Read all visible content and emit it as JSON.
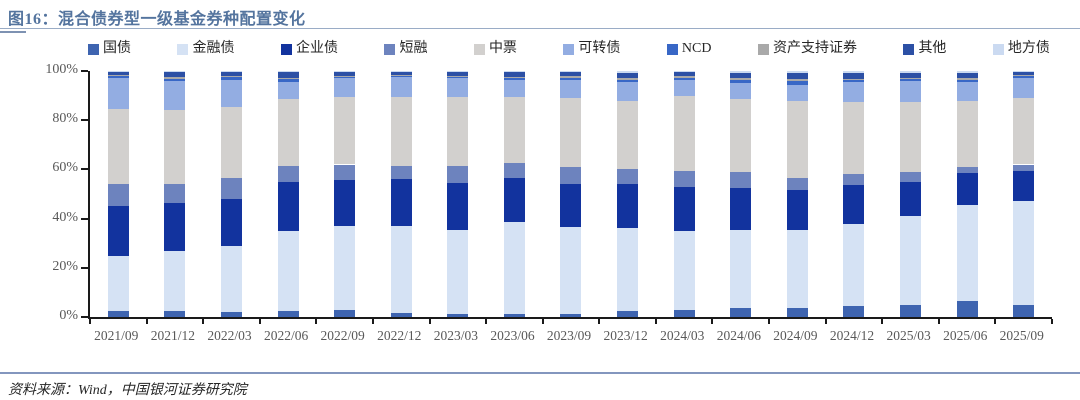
{
  "title": "图16：混合债券型一级基金券种配置变化",
  "source": "资料来源：Wind，中国银河证券研究院",
  "colors": {
    "title": "#54749E",
    "divider": "#9AACC6",
    "divider_accent": "#7E92B2",
    "footer_divider": "#8396BE",
    "axis": "#1A1A1A",
    "axis_label": "#595959",
    "legend_text": "#262626",
    "source_text": "#262626"
  },
  "chart_data": {
    "type": "bar",
    "stacked": true,
    "stacked_percent": true,
    "title": "混合债券型一级基金券种配置变化",
    "xlabel": "",
    "ylabel": "",
    "ylim": [
      0,
      100
    ],
    "yticks": [
      "0%",
      "20%",
      "40%",
      "60%",
      "80%",
      "100%"
    ],
    "grid": false,
    "legend_position": "top",
    "categories": [
      "2021/09",
      "2021/12",
      "2022/03",
      "2022/06",
      "2022/09",
      "2022/12",
      "2023/03",
      "2023/06",
      "2023/09",
      "2023/12",
      "2024/03",
      "2024/06",
      "2024/09",
      "2024/12",
      "2025/03",
      "2025/06",
      "2025/09"
    ],
    "series": [
      {
        "name": "国债",
        "color": "#3E64B0",
        "values": [
          2.5,
          2.5,
          2.0,
          2.5,
          3.0,
          1.8,
          1.2,
          1.3,
          1.2,
          2.5,
          2.8,
          3.5,
          3.8,
          4.5,
          4.8,
          6.5,
          5.0
        ]
      },
      {
        "name": "金融债",
        "color": "#D5E2F4",
        "values": [
          22.5,
          24.5,
          27.0,
          32.5,
          34.0,
          35.2,
          34.3,
          37.2,
          35.3,
          33.5,
          32.2,
          32.0,
          31.4,
          33.5,
          36.2,
          39.0,
          42.0
        ]
      },
      {
        "name": "企业债",
        "color": "#12339E",
        "values": [
          20.0,
          19.5,
          19.0,
          20.0,
          18.5,
          19.0,
          19.0,
          18.0,
          17.5,
          18.0,
          18.0,
          17.0,
          16.3,
          15.5,
          14.0,
          13.0,
          12.5
        ]
      },
      {
        "name": "短融",
        "color": "#6D83BE",
        "values": [
          9.0,
          7.5,
          8.5,
          6.5,
          6.5,
          5.5,
          7.0,
          6.0,
          7.0,
          6.0,
          6.5,
          6.5,
          5.0,
          4.5,
          4.0,
          2.5,
          2.5
        ]
      },
      {
        "name": "中票",
        "color": "#D2D0CE",
        "values": [
          30.5,
          30.0,
          29.0,
          27.0,
          27.5,
          28.0,
          28.0,
          27.0,
          28.0,
          28.0,
          30.5,
          29.5,
          31.5,
          29.5,
          28.5,
          27.0,
          27.0
        ]
      },
      {
        "name": "可转债",
        "color": "#93ADE2",
        "values": [
          12.5,
          12.0,
          11.0,
          7.0,
          7.5,
          8.0,
          7.5,
          7.0,
          7.5,
          7.5,
          6.5,
          6.5,
          6.5,
          8.0,
          8.5,
          7.5,
          8.0
        ]
      },
      {
        "name": "NCD",
        "color": "#3867C6",
        "values": [
          0.8,
          0.8,
          1.0,
          1.2,
          0.6,
          0.5,
          0.7,
          0.8,
          0.8,
          1.0,
          0.8,
          1.5,
          1.5,
          0.8,
          0.8,
          1.0,
          0.8
        ]
      },
      {
        "name": "资产支持证券",
        "color": "#A9A9A9",
        "values": [
          0.4,
          0.6,
          0.5,
          0.5,
          0.4,
          0.4,
          0.4,
          0.4,
          0.5,
          0.5,
          0.5,
          0.5,
          0.7,
          0.5,
          0.5,
          0.5,
          0.4
        ]
      },
      {
        "name": "其他",
        "color": "#2C50A5",
        "values": [
          1.5,
          2.1,
          1.7,
          2.3,
          1.6,
          1.3,
          1.6,
          1.8,
          1.7,
          2.0,
          1.7,
          2.0,
          2.3,
          2.2,
          1.7,
          2.0,
          1.3
        ]
      },
      {
        "name": "地方债",
        "color": "#CBDAF1",
        "values": [
          0.3,
          0.5,
          0.3,
          0.5,
          0.4,
          0.3,
          0.3,
          0.5,
          0.5,
          1.0,
          0.5,
          1.0,
          1.0,
          1.0,
          1.0,
          1.0,
          0.5
        ]
      }
    ]
  }
}
